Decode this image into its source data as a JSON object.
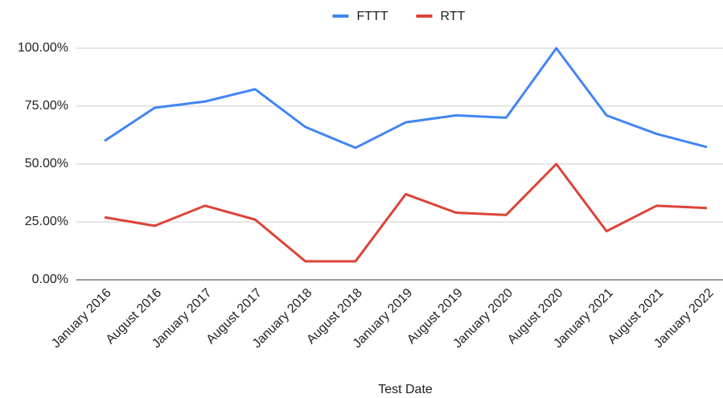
{
  "chart_data": {
    "type": "line",
    "x_label": "Test Date",
    "categories": [
      "January 2016",
      "August 2016",
      "January 2017",
      "August 2017",
      "January 2018",
      "August 2018",
      "January 2019",
      "August 2019",
      "January 2020",
      "August 2020",
      "January 2021",
      "August 2021",
      "January 2022"
    ],
    "series": [
      {
        "name": "FTTT",
        "color": "#4285f4",
        "values": [
          60,
          74.3,
          77,
          82.3,
          66,
          57,
          68,
          71,
          70,
          100,
          71,
          63,
          57.3
        ]
      },
      {
        "name": "RTT",
        "color": "#db4437",
        "values": [
          27,
          23.3,
          32,
          26,
          8,
          8,
          37,
          29,
          28,
          50,
          21,
          32,
          31
        ]
      }
    ],
    "ylim": [
      0,
      100
    ],
    "yticks": [
      {
        "value": 0,
        "label": "0.00%"
      },
      {
        "value": 25,
        "label": "25.00%"
      },
      {
        "value": 50,
        "label": "50.00%"
      },
      {
        "value": 75,
        "label": "75.00%"
      },
      {
        "value": 100,
        "label": "100.00%"
      }
    ],
    "grid": true,
    "legend": "top"
  }
}
